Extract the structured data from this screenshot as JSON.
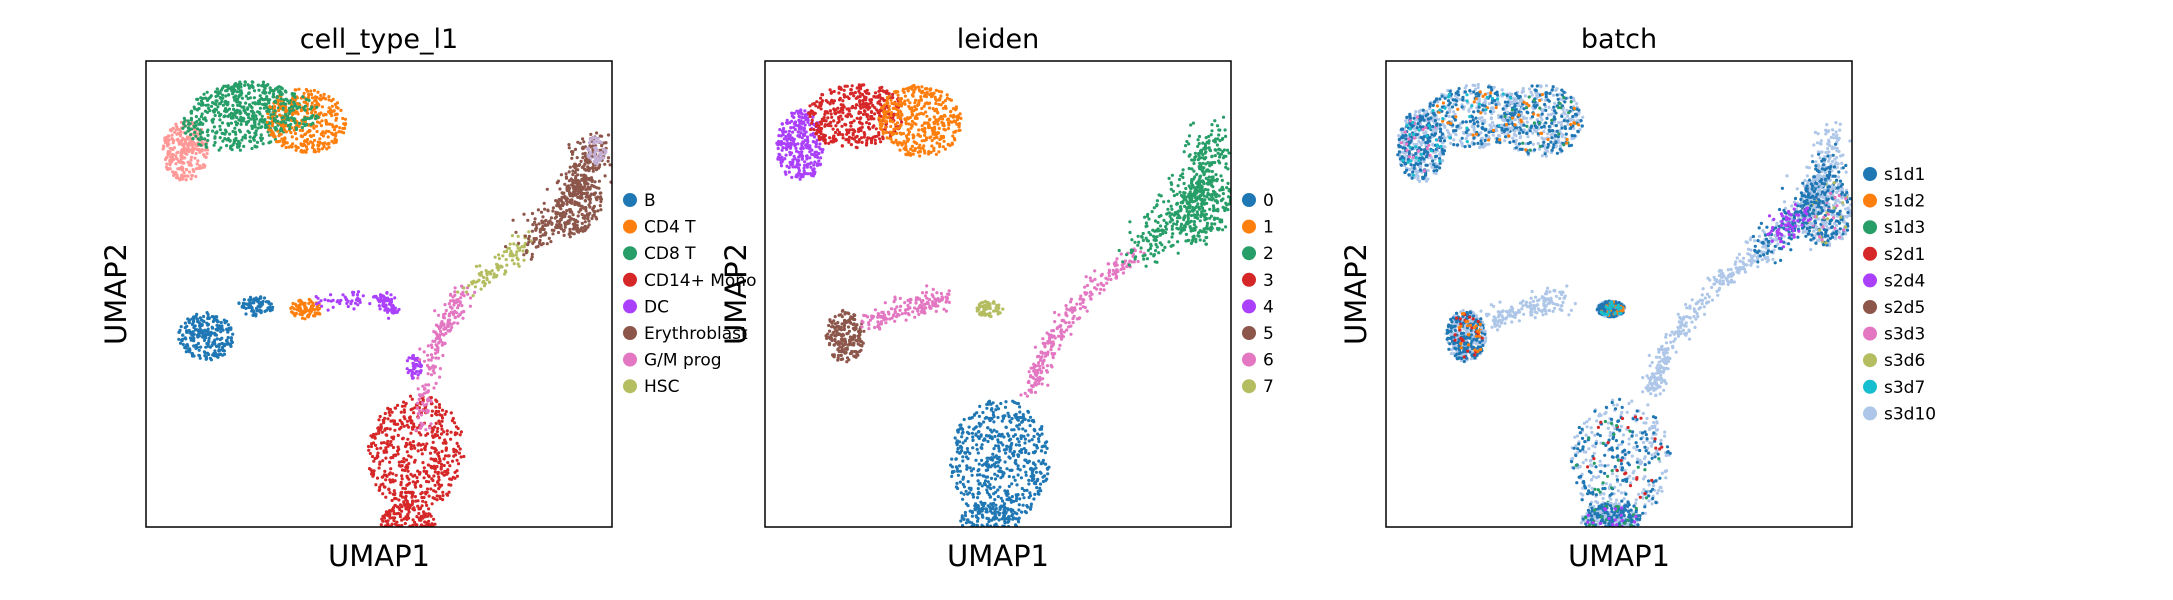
{
  "chart_data": [
    {
      "type": "scatter",
      "title": "cell_type_l1",
      "xlabel": "UMAP1",
      "ylabel": "UMAP2",
      "grid": false,
      "ticks": false,
      "legend_placement": "right",
      "series": [
        {
          "name": "B",
          "color": "#1f77b4"
        },
        {
          "name": "CD4 T",
          "color": "#ff7f0e"
        },
        {
          "name": "CD8 T",
          "color": "#279e68"
        },
        {
          "name": "CD14+ Mono",
          "color": "#d62728"
        },
        {
          "name": "DC",
          "color": "#aa40fc"
        },
        {
          "name": "Erythroblast",
          "color": "#8c564b"
        },
        {
          "name": "G/M prog",
          "color": "#e377c2"
        },
        {
          "name": "HSC",
          "color": "#b5bd61"
        }
      ]
    },
    {
      "type": "scatter",
      "title": "leiden",
      "xlabel": "UMAP1",
      "ylabel": "UMAP2",
      "grid": false,
      "ticks": false,
      "legend_placement": "right",
      "series": [
        {
          "name": "0",
          "color": "#1f77b4"
        },
        {
          "name": "1",
          "color": "#ff7f0e"
        },
        {
          "name": "2",
          "color": "#279e68"
        },
        {
          "name": "3",
          "color": "#d62728"
        },
        {
          "name": "4",
          "color": "#aa40fc"
        },
        {
          "name": "5",
          "color": "#8c564b"
        },
        {
          "name": "6",
          "color": "#e377c2"
        },
        {
          "name": "7",
          "color": "#b5bd61"
        }
      ]
    },
    {
      "type": "scatter",
      "title": "batch",
      "xlabel": "UMAP1",
      "ylabel": "UMAP2",
      "grid": false,
      "ticks": false,
      "legend_placement": "right",
      "series": [
        {
          "name": "s1d1",
          "color": "#1f77b4"
        },
        {
          "name": "s1d2",
          "color": "#ff7f0e"
        },
        {
          "name": "s1d3",
          "color": "#279e68"
        },
        {
          "name": "s2d1",
          "color": "#d62728"
        },
        {
          "name": "s2d4",
          "color": "#aa40fc"
        },
        {
          "name": "s2d5",
          "color": "#8c564b"
        },
        {
          "name": "s3d3",
          "color": "#e377c2"
        },
        {
          "name": "s3d6",
          "color": "#b5bd61"
        },
        {
          "name": "s3d7",
          "color": "#17becf"
        },
        {
          "name": "s3d10",
          "color": "#aec7e8"
        }
      ]
    }
  ],
  "cluster_layout": {
    "cell_type_l1": [
      {
        "region": "top-left blob",
        "colors": [
          "pink/light",
          "CD8 T",
          "CD4 T"
        ]
      },
      {
        "region": "middle-left island",
        "colors": [
          "B",
          "CD4 T",
          "DC"
        ]
      },
      {
        "region": "right trajectory",
        "colors": [
          "HSC",
          "G/M prog",
          "Erythroblast"
        ]
      },
      {
        "region": "bottom mass",
        "colors": [
          "CD14+ Mono"
        ]
      }
    ],
    "leiden": [
      {
        "region": "top-left blob",
        "colors": [
          "4",
          "3",
          "1"
        ]
      },
      {
        "region": "middle-left island",
        "colors": [
          "5",
          "6",
          "7"
        ]
      },
      {
        "region": "right trajectory",
        "colors": [
          "2",
          "6"
        ]
      },
      {
        "region": "bottom mass",
        "colors": [
          "0"
        ]
      }
    ],
    "batch": [
      {
        "region": "all",
        "colors": [
          "s1d1",
          "s3d10"
        ]
      }
    ]
  }
}
